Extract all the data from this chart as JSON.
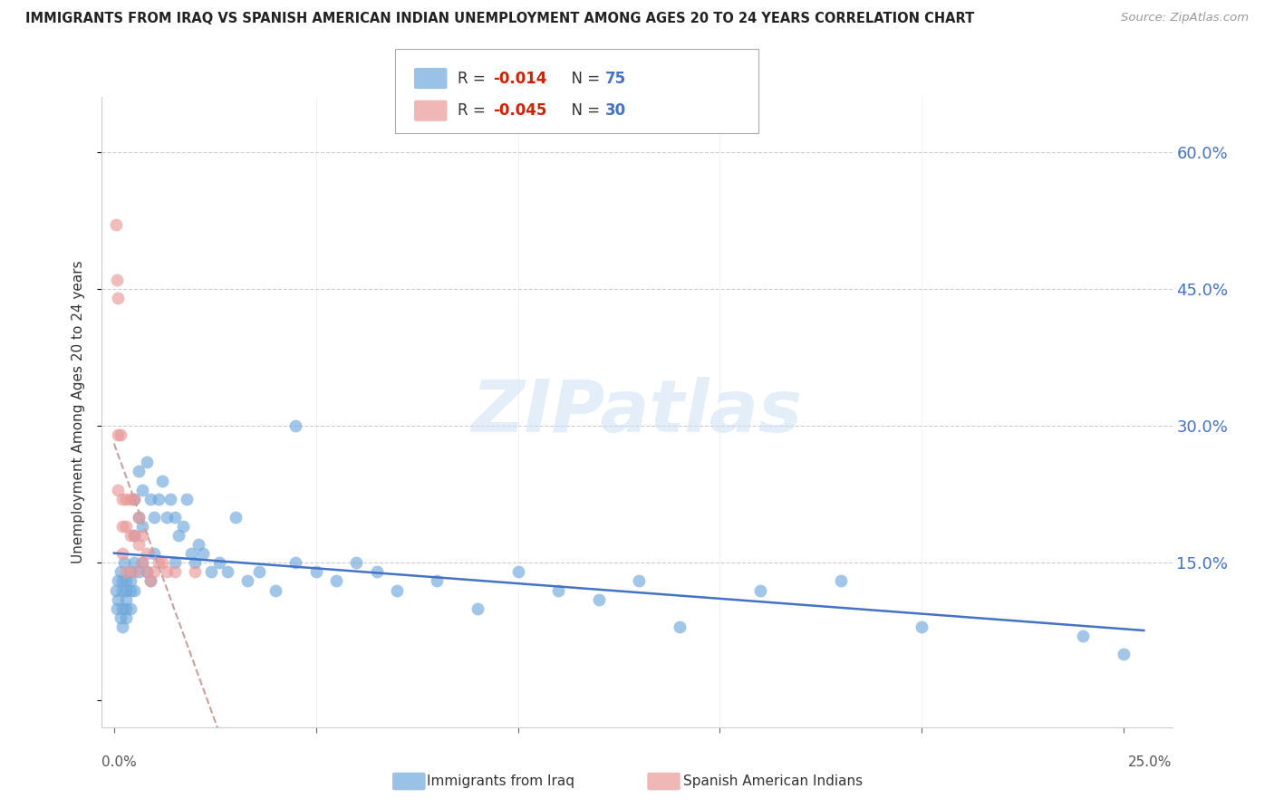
{
  "title": "IMMIGRANTS FROM IRAQ VS SPANISH AMERICAN INDIAN UNEMPLOYMENT AMONG AGES 20 TO 24 YEARS CORRELATION CHART",
  "source": "Source: ZipAtlas.com",
  "ylabel": "Unemployment Among Ages 20 to 24 years",
  "y_ticks": [
    0.0,
    0.15,
    0.3,
    0.45,
    0.6
  ],
  "y_tick_labels": [
    "",
    "15.0%",
    "30.0%",
    "45.0%",
    "60.0%"
  ],
  "x_ticks": [
    0.0,
    0.05,
    0.1,
    0.15,
    0.2,
    0.25
  ],
  "xlim": [
    -0.003,
    0.262
  ],
  "ylim": [
    -0.03,
    0.66
  ],
  "legend_blue_R": "-0.014",
  "legend_blue_N": "75",
  "legend_pink_R": "-0.045",
  "legend_pink_N": "30",
  "legend_blue_label": "Immigrants from Iraq",
  "legend_pink_label": "Spanish American Indians",
  "blue_color": "#6fa8dc",
  "pink_color": "#ea9999",
  "right_axis_color": "#4472c4",
  "trend_blue_color": "#4472c4",
  "trend_pink_color": "#c9a0a0",
  "watermark": "ZIPatlas",
  "blue_x": [
    0.0005,
    0.0008,
    0.001,
    0.001,
    0.0015,
    0.0015,
    0.002,
    0.002,
    0.002,
    0.002,
    0.0025,
    0.003,
    0.003,
    0.003,
    0.003,
    0.003,
    0.004,
    0.004,
    0.004,
    0.004,
    0.005,
    0.005,
    0.005,
    0.005,
    0.006,
    0.006,
    0.006,
    0.007,
    0.007,
    0.007,
    0.008,
    0.008,
    0.009,
    0.009,
    0.01,
    0.01,
    0.011,
    0.012,
    0.013,
    0.014,
    0.015,
    0.015,
    0.016,
    0.017,
    0.018,
    0.019,
    0.02,
    0.021,
    0.022,
    0.024,
    0.026,
    0.028,
    0.03,
    0.033,
    0.036,
    0.04,
    0.045,
    0.05,
    0.055,
    0.06,
    0.065,
    0.07,
    0.08,
    0.09,
    0.1,
    0.11,
    0.12,
    0.13,
    0.14,
    0.16,
    0.18,
    0.2,
    0.24,
    0.25,
    0.045
  ],
  "blue_y": [
    0.12,
    0.1,
    0.13,
    0.11,
    0.14,
    0.09,
    0.12,
    0.1,
    0.13,
    0.08,
    0.15,
    0.11,
    0.13,
    0.1,
    0.12,
    0.09,
    0.14,
    0.12,
    0.1,
    0.13,
    0.22,
    0.18,
    0.15,
    0.12,
    0.25,
    0.2,
    0.14,
    0.23,
    0.19,
    0.15,
    0.26,
    0.14,
    0.22,
    0.13,
    0.2,
    0.16,
    0.22,
    0.24,
    0.2,
    0.22,
    0.2,
    0.15,
    0.18,
    0.19,
    0.22,
    0.16,
    0.15,
    0.17,
    0.16,
    0.14,
    0.15,
    0.14,
    0.2,
    0.13,
    0.14,
    0.12,
    0.15,
    0.14,
    0.13,
    0.15,
    0.14,
    0.12,
    0.13,
    0.1,
    0.14,
    0.12,
    0.11,
    0.13,
    0.08,
    0.12,
    0.13,
    0.08,
    0.07,
    0.05,
    0.3
  ],
  "pink_x": [
    0.0005,
    0.0008,
    0.001,
    0.001,
    0.001,
    0.0015,
    0.002,
    0.002,
    0.002,
    0.003,
    0.003,
    0.003,
    0.004,
    0.004,
    0.005,
    0.005,
    0.005,
    0.006,
    0.006,
    0.007,
    0.007,
    0.008,
    0.008,
    0.009,
    0.01,
    0.011,
    0.012,
    0.013,
    0.015,
    0.02
  ],
  "pink_y": [
    0.52,
    0.46,
    0.44,
    0.29,
    0.23,
    0.29,
    0.22,
    0.19,
    0.16,
    0.22,
    0.19,
    0.14,
    0.22,
    0.18,
    0.22,
    0.18,
    0.14,
    0.2,
    0.17,
    0.18,
    0.15,
    0.16,
    0.14,
    0.13,
    0.14,
    0.15,
    0.15,
    0.14,
    0.14,
    0.14
  ]
}
